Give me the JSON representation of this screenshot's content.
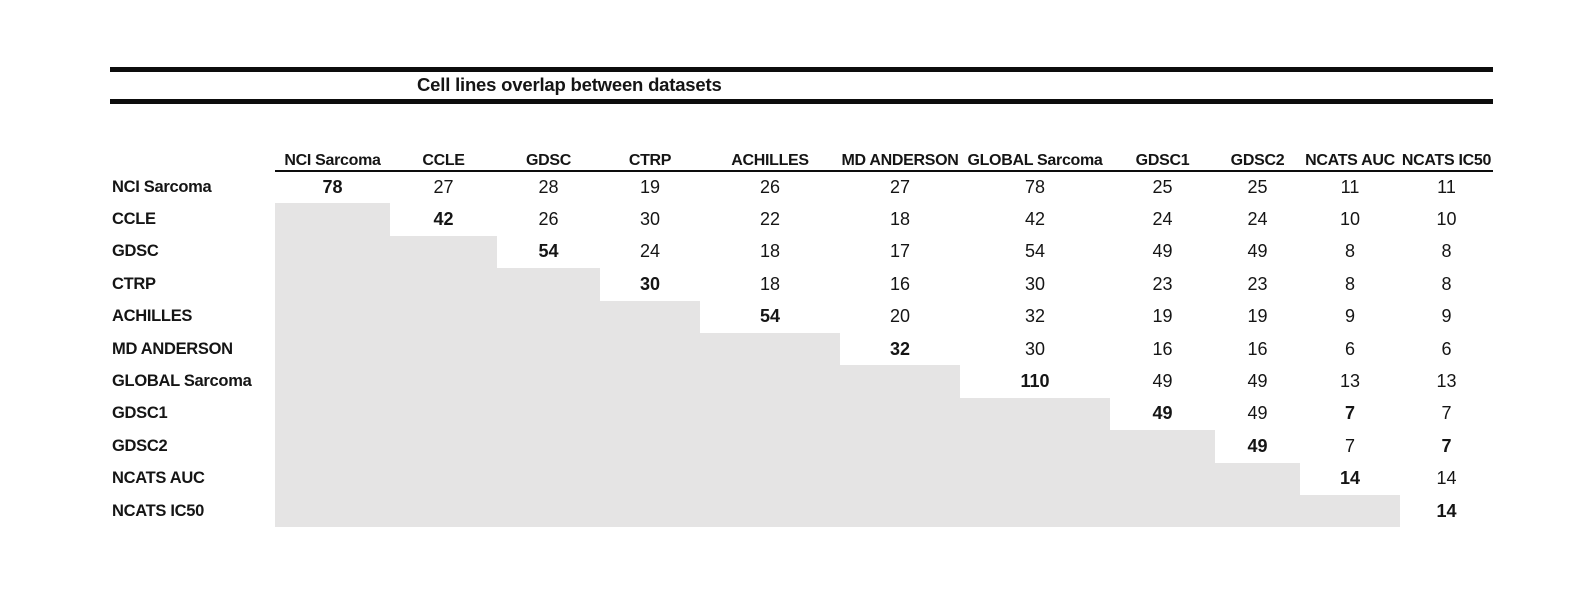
{
  "chart_data": {
    "type": "table",
    "title": "Cell lines overlap between datasets",
    "layout": {
      "shaded_region": "lower-triangle",
      "diagonal_emphasis": "bold",
      "header_underline": "data-columns-only"
    },
    "columns": [
      "NCI Sarcoma",
      "CCLE",
      "GDSC",
      "CTRP",
      "ACHILLES",
      "MD ANDERSON",
      "GLOBAL Sarcoma",
      "GDSC1",
      "GDSC2",
      "NCATS AUC",
      "NCATS IC50"
    ],
    "rows": [
      {
        "label": "NCI Sarcoma",
        "values": [
          78,
          27,
          28,
          19,
          26,
          27,
          78,
          25,
          25,
          11,
          11
        ],
        "bold": [
          0
        ]
      },
      {
        "label": "CCLE",
        "values": [
          null,
          42,
          26,
          30,
          22,
          18,
          42,
          24,
          24,
          10,
          10
        ],
        "bold": [
          1
        ]
      },
      {
        "label": "GDSC",
        "values": [
          null,
          null,
          54,
          24,
          18,
          17,
          54,
          49,
          49,
          8,
          8
        ],
        "bold": [
          2
        ]
      },
      {
        "label": "CTRP",
        "values": [
          null,
          null,
          null,
          30,
          18,
          16,
          30,
          23,
          23,
          8,
          8
        ],
        "bold": [
          3
        ]
      },
      {
        "label": "ACHILLES",
        "values": [
          null,
          null,
          null,
          null,
          54,
          20,
          32,
          19,
          19,
          9,
          9
        ],
        "bold": [
          4
        ]
      },
      {
        "label": "MD ANDERSON",
        "values": [
          null,
          null,
          null,
          null,
          null,
          32,
          30,
          16,
          16,
          6,
          6
        ],
        "bold": [
          5
        ]
      },
      {
        "label": "GLOBAL Sarcoma",
        "values": [
          null,
          null,
          null,
          null,
          null,
          null,
          110,
          49,
          49,
          13,
          13
        ],
        "bold": [
          6
        ]
      },
      {
        "label": "GDSC1",
        "values": [
          null,
          null,
          null,
          null,
          null,
          null,
          null,
          49,
          49,
          7,
          7
        ],
        "bold": [
          7,
          9
        ]
      },
      {
        "label": "GDSC2",
        "values": [
          null,
          null,
          null,
          null,
          null,
          null,
          null,
          null,
          49,
          7,
          7
        ],
        "bold": [
          8,
          10
        ]
      },
      {
        "label": "NCATS AUC",
        "values": [
          null,
          null,
          null,
          null,
          null,
          null,
          null,
          null,
          null,
          14,
          14
        ],
        "bold": [
          9
        ]
      },
      {
        "label": "NCATS IC50",
        "values": [
          null,
          null,
          null,
          null,
          null,
          null,
          null,
          null,
          null,
          null,
          14
        ],
        "bold": [
          10
        ]
      }
    ]
  },
  "colors": {
    "shade": "#e5e4e4",
    "rule": "#0d0d0d",
    "text": "#151515"
  }
}
